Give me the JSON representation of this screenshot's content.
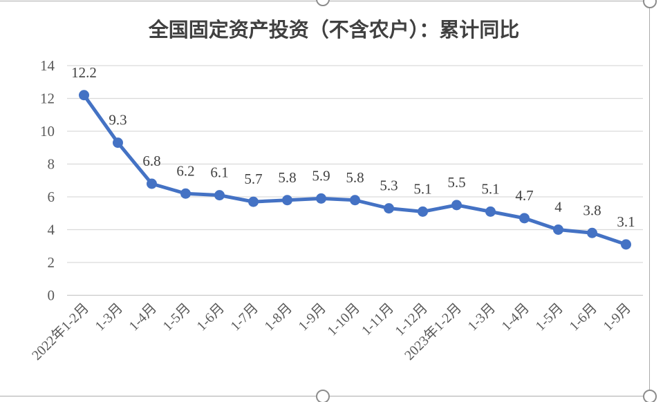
{
  "chart_data": {
    "type": "line",
    "title": "全国固定资产投资（不含农户）：累计同比",
    "categories": [
      "2022年1-2月",
      "1-3月",
      "1-4月",
      "1-5月",
      "1-6月",
      "1-7月",
      "1-8月",
      "1-9月",
      "1-10月",
      "1-11月",
      "1-12月",
      "2023年1-2月",
      "1-3月",
      "1-4月",
      "1-5月",
      "1-6月",
      "1-9月"
    ],
    "values": [
      12.2,
      9.3,
      6.8,
      6.2,
      6.1,
      5.7,
      5.8,
      5.9,
      5.8,
      5.3,
      5.1,
      5.5,
      5.1,
      4.7,
      4,
      3.8,
      3.1
    ],
    "data_labels": [
      "12.2",
      "9.3",
      "6.8",
      "6.2",
      "6.1",
      "5.7",
      "5.8",
      "5.9",
      "5.8",
      "5.3",
      "5.1",
      "5.5",
      "5.1",
      "4.7",
      "4",
      "3.8",
      "3.1"
    ],
    "xlabel": "",
    "ylabel": "",
    "ylim": [
      0,
      14
    ],
    "y_ticks": [
      0,
      2,
      4,
      6,
      8,
      10,
      12,
      14
    ],
    "grid": true,
    "legend": "none",
    "colors": {
      "series": "#4472C4",
      "gridline": "#D9D9D9",
      "axis_line": "#C8C8C8",
      "axis_text": "#595959",
      "data_label_text": "#404040",
      "title_text": "#404040",
      "chart_border": "#ABABAB"
    }
  },
  "chart_frame": {
    "selected": true,
    "handles": [
      "top-center",
      "bottom-center",
      "top-right-corner",
      "bottom-right-corner"
    ]
  }
}
